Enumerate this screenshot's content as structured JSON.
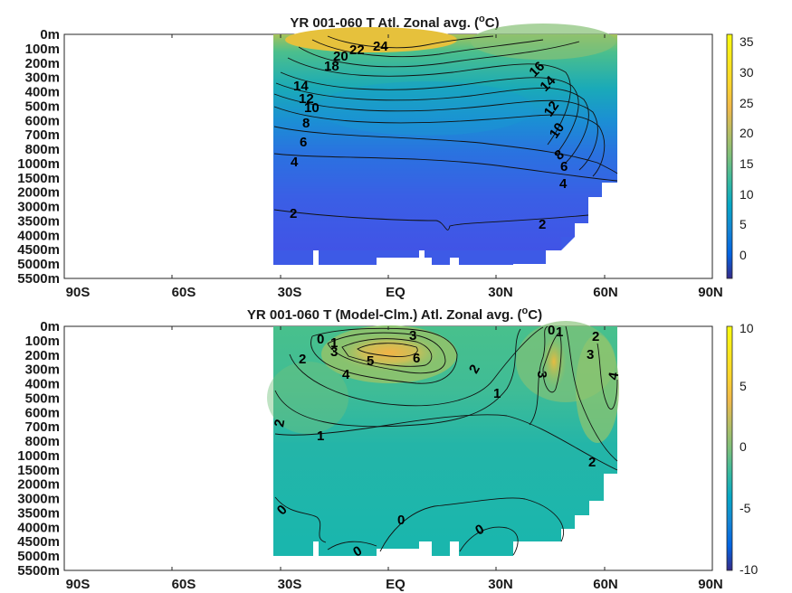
{
  "chart_data": [
    {
      "type": "heatmap",
      "subtype": "filled contour",
      "title": "YR 001-060 T Atl. Zonal avg. (",
      "title_sup": "o",
      "title_tail": "C)",
      "x_ticks": [
        "90S",
        "60S",
        "30S",
        "EQ",
        "30N",
        "60N",
        "90N"
      ],
      "y_ticks": [
        "0m",
        "100m",
        "200m",
        "300m",
        "400m",
        "500m",
        "600m",
        "700m",
        "800m",
        "1000m",
        "1500m",
        "2000m",
        "3000m",
        "3500m",
        "4000m",
        "4500m",
        "5000m",
        "5500m"
      ],
      "colorbar_ticks": [
        "35",
        "30",
        "25",
        "20",
        "15",
        "10",
        "5",
        "0"
      ],
      "colorbar_range": [
        -3,
        36
      ],
      "colormap": "parula",
      "contour_labels": [
        "24",
        "22",
        "20",
        "18",
        "16",
        "14",
        "14",
        "12",
        "12",
        "10",
        "10",
        "8",
        "8",
        "6",
        "6",
        "4",
        "4",
        "2",
        "2"
      ]
    },
    {
      "type": "heatmap",
      "subtype": "filled contour",
      "title": "YR 001-060 T (Model-Clm.) Atl. Zonal avg. (",
      "title_sup": "o",
      "title_tail": "C)",
      "x_ticks": [
        "90S",
        "60S",
        "30S",
        "EQ",
        "30N",
        "60N",
        "90N"
      ],
      "y_ticks": [
        "0m",
        "100m",
        "200m",
        "300m",
        "400m",
        "500m",
        "600m",
        "700m",
        "800m",
        "1000m",
        "1500m",
        "2000m",
        "3000m",
        "3500m",
        "4000m",
        "4500m",
        "5000m",
        "5500m"
      ],
      "colorbar_ticks": [
        "10",
        "5",
        "0",
        "-5",
        "-10"
      ],
      "colorbar_range": [
        -10,
        10
      ],
      "colormap": "parula",
      "contour_labels": [
        "0",
        "1",
        "3",
        "2",
        "4",
        "5",
        "3",
        "6",
        "2",
        "0",
        "1",
        "2",
        "3",
        "3",
        "4",
        "1",
        "1",
        "2",
        "2",
        "0",
        "0",
        "0",
        "0"
      ]
    }
  ]
}
